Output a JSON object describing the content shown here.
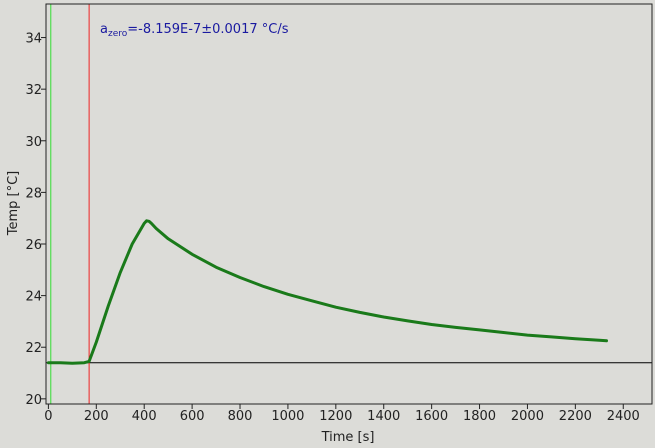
{
  "chart_data": {
    "type": "line",
    "xlabel": "Time [s]",
    "ylabel": "Temp [°C]",
    "xlim": [
      -10,
      2520
    ],
    "ylim": [
      19.8,
      35.3
    ],
    "xticks": [
      0,
      200,
      400,
      600,
      800,
      1000,
      1200,
      1400,
      1600,
      1800,
      2000,
      2200,
      2400
    ],
    "yticks": [
      20,
      22,
      24,
      26,
      28,
      30,
      32,
      34
    ],
    "grid": false,
    "annotation": {
      "base": "a",
      "subscript": "zero",
      "text": "=-8.159E-7±0.0017 °C/s",
      "color": "#1a1aa0"
    },
    "vertical_markers": [
      {
        "x": 10,
        "color": "#33dd33"
      },
      {
        "x": 170,
        "color": "#ee2222"
      }
    ],
    "horizontal_markers": [
      {
        "y": 21.4,
        "color": "#000000"
      }
    ],
    "series": [
      {
        "color": "#1a7a1a",
        "x": [
          0,
          50,
          100,
          150,
          170,
          180,
          200,
          250,
          300,
          350,
          400,
          410,
          420,
          430,
          450,
          500,
          600,
          700,
          800,
          900,
          1000,
          1100,
          1200,
          1300,
          1400,
          1500,
          1600,
          1700,
          1800,
          1900,
          2000,
          2100,
          2200,
          2300,
          2330
        ],
        "y": [
          21.4,
          21.4,
          21.38,
          21.4,
          21.45,
          21.7,
          22.2,
          23.6,
          24.9,
          26.0,
          26.8,
          26.9,
          26.88,
          26.8,
          26.6,
          26.2,
          25.6,
          25.1,
          24.7,
          24.35,
          24.05,
          23.8,
          23.55,
          23.35,
          23.17,
          23.02,
          22.88,
          22.77,
          22.67,
          22.57,
          22.47,
          22.4,
          22.33,
          22.27,
          22.25
        ]
      }
    ]
  }
}
